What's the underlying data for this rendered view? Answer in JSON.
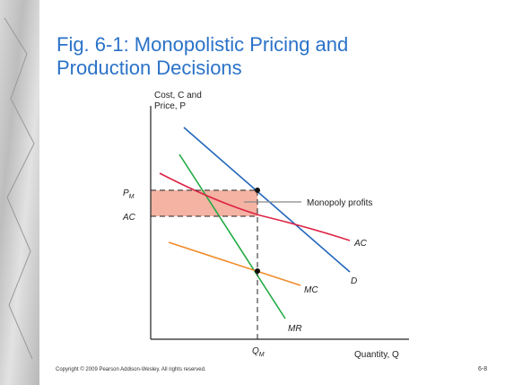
{
  "slide": {
    "title": [
      "Fig. 6-1: Monopolistic Pricing and",
      "Production Decisions"
    ],
    "y_axis_label": [
      "Cost, C and",
      "Price, P"
    ],
    "x_axis_label": "Quantity, Q",
    "labels": {
      "p_m": {
        "main": "P",
        "sub": "M"
      },
      "ac_axis": "AC",
      "q_m": {
        "main": "Q",
        "sub": "M"
      },
      "monopoly_profits": "Monopoly profits",
      "ac_curve": "AC",
      "d_curve": "D",
      "mc_curve": "MC",
      "mr_curve": "MR"
    },
    "copyright": "Copyright © 2009 Pearson Addison-Wesley. All rights reserved.",
    "page_number": "6-8"
  }
}
